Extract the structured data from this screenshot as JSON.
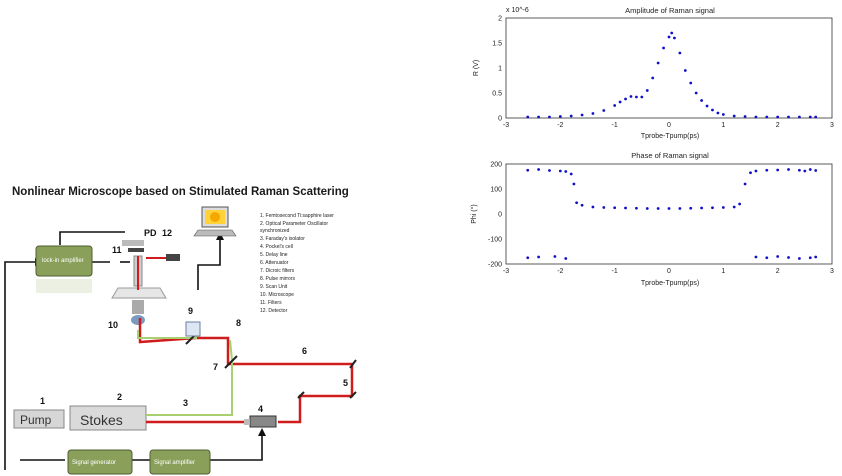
{
  "diagram": {
    "title": "Nonlinear Microscope based on Stimulated Raman Scattering",
    "boxes": {
      "lockin": "lock-in amplifier",
      "pump": "Pump",
      "stokes": "Stokes",
      "signal_generator": "Signal generator",
      "signal_amplifier": "Signal amplifier",
      "pd": "PD"
    },
    "numbers": [
      "1",
      "2",
      "3",
      "4",
      "5",
      "6",
      "7",
      "8",
      "9",
      "10",
      "11",
      "12"
    ],
    "legend": [
      "1.    Femtosecond Ti:sapphire laser",
      "2.    Optical Parameter Oscillator",
      "        synchronized",
      "3.    Faraday's isolator",
      "4.    Pockel's cell",
      "5.    Delay line",
      "6.    Attenuator",
      "7.    Dicroic filters",
      "8.    Pulse mirrors",
      "9.    Scan Unit",
      "10.  Microscope",
      "11.  Filters",
      "12.  Detector"
    ]
  },
  "chart_data": [
    {
      "type": "scatter",
      "title": "Amplitude of Raman signal",
      "xlabel": "Tprobe-Tpump(ps)",
      "ylabel": "R (V)",
      "y_multiplier": "x 10^-6",
      "xlim": [
        -3,
        3
      ],
      "ylim": [
        0,
        2e-06
      ],
      "xticks": [
        "-3",
        "-2",
        "-1",
        "0",
        "1",
        "2",
        "3"
      ],
      "yticks": [
        "0",
        "0.5",
        "1",
        "1.5",
        "2"
      ],
      "series": [
        {
          "color": "#1010c8",
          "x": [
            -2.6,
            -2.4,
            -2.2,
            -2.0,
            -1.8,
            -1.6,
            -1.4,
            -1.2,
            -1.0,
            -0.9,
            -0.8,
            -0.7,
            -0.6,
            -0.5,
            -0.4,
            -0.3,
            -0.2,
            -0.1,
            0.0,
            0.05,
            0.1,
            0.2,
            0.3,
            0.4,
            0.5,
            0.6,
            0.7,
            0.8,
            0.9,
            1.0,
            1.2,
            1.4,
            1.6,
            1.8,
            2.0,
            2.2,
            2.4,
            2.6,
            2.7
          ],
          "y": [
            2e-08,
            2e-08,
            2e-08,
            3e-08,
            4e-08,
            6e-08,
            9e-08,
            1.5e-07,
            2.5e-07,
            3.2e-07,
            3.8e-07,
            4.3e-07,
            4.2e-07,
            4.2e-07,
            5.5e-07,
            8e-07,
            1.1e-06,
            1.4e-06,
            1.62e-06,
            1.7e-06,
            1.6e-06,
            1.3e-06,
            9.5e-07,
            7e-07,
            5e-07,
            3.5e-07,
            2.4e-07,
            1.6e-07,
            1e-07,
            7e-08,
            4e-08,
            3e-08,
            2e-08,
            2e-08,
            2e-08,
            2e-08,
            2e-08,
            2e-08,
            2e-08
          ]
        }
      ]
    },
    {
      "type": "scatter",
      "title": "Phase of Raman signal",
      "xlabel": "Tprobe-Tpump(ps)",
      "ylabel": "Phi (°)",
      "xlim": [
        -3,
        3
      ],
      "ylim": [
        -200,
        200
      ],
      "xticks": [
        "-3",
        "-2",
        "-1",
        "0",
        "1",
        "2",
        "3"
      ],
      "yticks": [
        "-200",
        "-100",
        "0",
        "100",
        "200"
      ],
      "series": [
        {
          "color": "#1010c8",
          "x": [
            -2.6,
            -2.4,
            -2.2,
            -2.0,
            -1.9,
            -1.8,
            -1.75,
            -1.7,
            -1.6,
            -1.4,
            -1.2,
            -1.0,
            -0.8,
            -0.6,
            -0.4,
            -0.2,
            0.0,
            0.2,
            0.4,
            0.6,
            0.8,
            1.0,
            1.2,
            1.3,
            1.4,
            1.5,
            1.6,
            1.8,
            2.0,
            2.2,
            2.4,
            2.5,
            2.6,
            2.7,
            -2.6,
            -2.4,
            -2.1,
            -1.9,
            1.6,
            1.8,
            2.0,
            2.2,
            2.4,
            2.6,
            2.7
          ],
          "y": [
            175,
            178,
            174,
            172,
            170,
            160,
            120,
            45,
            35,
            28,
            26,
            25,
            24,
            23,
            22,
            22,
            22,
            22,
            23,
            24,
            25,
            26,
            28,
            40,
            120,
            165,
            172,
            175,
            176,
            178,
            175,
            172,
            178,
            174,
            -175,
            -172,
            -170,
            -178,
            -172,
            -175,
            -170,
            -174,
            -178,
            -175,
            -172
          ]
        }
      ]
    }
  ]
}
